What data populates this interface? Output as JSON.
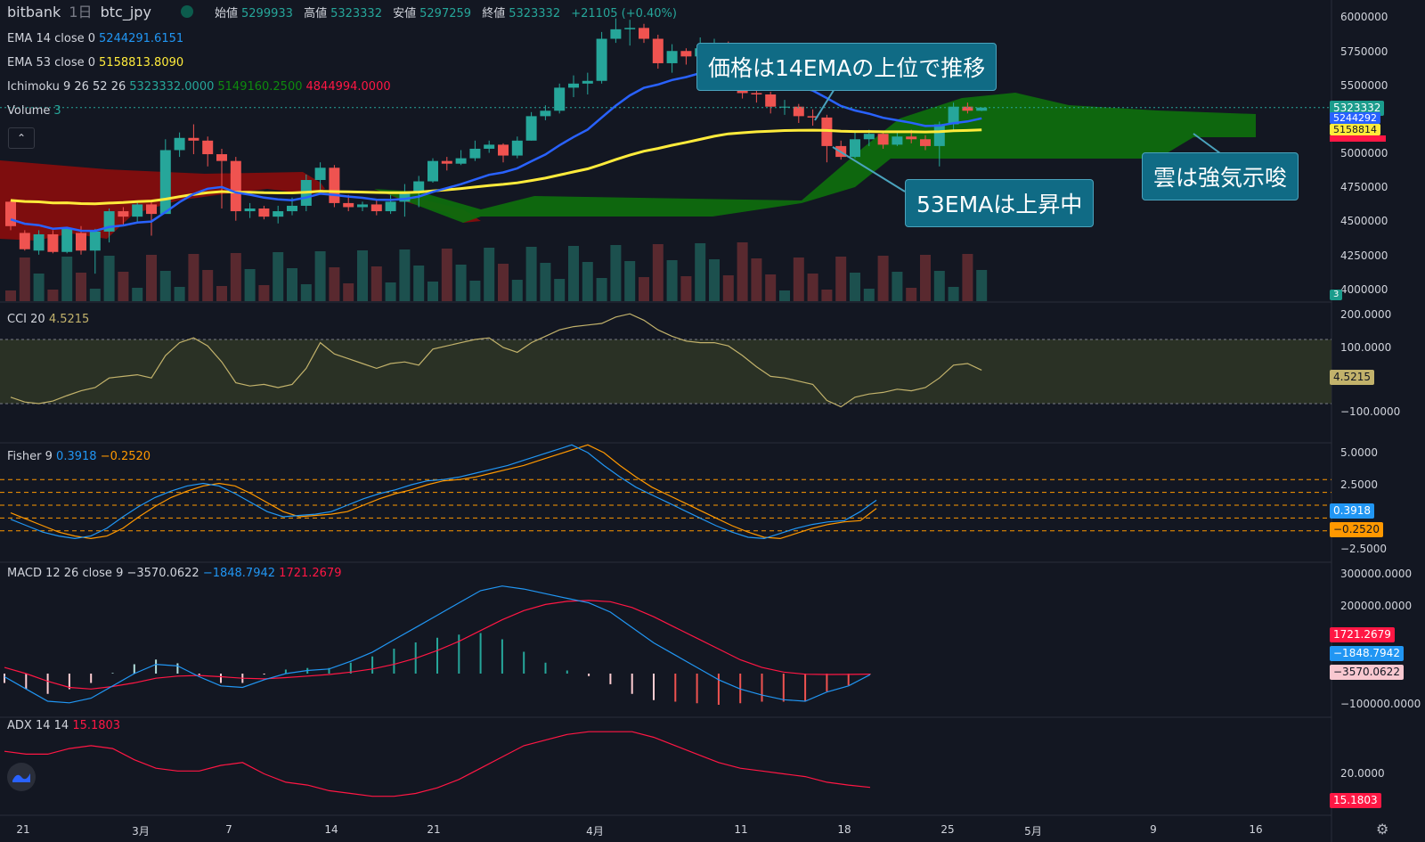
{
  "header": {
    "exchange": "bitbank",
    "interval": "1日",
    "symbol": "btc_jpy",
    "open_label": "始値",
    "open": "5299933",
    "high_label": "高値",
    "high": "5323332",
    "low_label": "安値",
    "low": "5297259",
    "close_label": "終値",
    "close": "5323332",
    "change": "+21105 (+0.40%)"
  },
  "legends": {
    "ema14_name": "EMA 14 close 0",
    "ema14_value": "5244291.6151",
    "ema53_name": "EMA 53 close 0",
    "ema53_value": "5158813.8090",
    "ichimoku_name": "Ichimoku 9 26 52 26",
    "ichimoku_v1": "5323332.0000",
    "ichimoku_v2": "5149160.2500",
    "ichimoku_v3": "4844994.0000",
    "volume_name": "Volume",
    "volume_value": "3",
    "cci_name": "CCI 20",
    "cci_value": "4.5215",
    "fisher_name": "Fisher 9",
    "fisher_v1": "0.3918",
    "fisher_v2": "−0.2520",
    "macd_name": "MACD 12 26 close 9",
    "macd_v1": "−3570.0622",
    "macd_v2": "−1848.7942",
    "macd_v3": "1721.2679",
    "adx_name": "ADX 14 14",
    "adx_value": "15.1803"
  },
  "price_axis": [
    "6000000",
    "5750000",
    "5500000",
    "5000000",
    "4750000",
    "4500000",
    "4250000",
    "4000000"
  ],
  "price_tags": {
    "last": "5323332",
    "ema14": "5244292",
    "ema53": "5158814",
    "volume": "3"
  },
  "cci_axis": [
    "200.0000",
    "100.0000",
    "−100.0000"
  ],
  "cci_tag": "4.5215",
  "fisher_axis": [
    "5.0000",
    "2.5000",
    "−2.5000"
  ],
  "fisher_tags": {
    "v1": "0.3918",
    "v2": "−0.2520"
  },
  "macd_axis": [
    "300000.0000",
    "200000.0000",
    "−100000.0000"
  ],
  "macd_tags": {
    "signal_hist": "1721.2679",
    "v2": "−1848.7942",
    "v1": "−3570.0622"
  },
  "adx_axis": [
    "20.0000"
  ],
  "adx_tag": "15.1803",
  "x_axis": [
    "21",
    "3月",
    "7",
    "14",
    "21",
    "4月",
    "11",
    "18",
    "25",
    "5月",
    "9",
    "16"
  ],
  "callouts": {
    "c1": "価格は14EMAの上位で推移",
    "c2": "53EMAは上昇中",
    "c3": "雲は強気示唆"
  },
  "colors": {
    "background": "#131722",
    "up": "#26a69a",
    "down": "#ef5350",
    "ema14": "#2962ff",
    "ema53": "#ffeb3b",
    "cloud_bull": "#0e6b0e",
    "cloud_bear": "#a50e0e",
    "callout": "#106b85"
  },
  "chart_data": {
    "type": "candlestick",
    "symbol": "btc_jpy",
    "interval": "1日",
    "ylim": [
      3950000,
      6050000
    ],
    "candles": [
      [
        4630000,
        4450000,
        4640000,
        4420000
      ],
      [
        4400000,
        4280000,
        4420000,
        4270000
      ],
      [
        4270000,
        4390000,
        4420000,
        4240000
      ],
      [
        4390000,
        4260000,
        4420000,
        4250000
      ],
      [
        4260000,
        4430000,
        4440000,
        4250000
      ],
      [
        4400000,
        4270000,
        4450000,
        4240000
      ],
      [
        4270000,
        4410000,
        4430000,
        4100000
      ],
      [
        4410000,
        4560000,
        4580000,
        4330000
      ],
      [
        4560000,
        4520000,
        4590000,
        4460000
      ],
      [
        4520000,
        4610000,
        4630000,
        4480000
      ],
      [
        4610000,
        4540000,
        4640000,
        4380000
      ],
      [
        4540000,
        5010000,
        5090000,
        4540000
      ],
      [
        5010000,
        5100000,
        5140000,
        4960000
      ],
      [
        5100000,
        5080000,
        5200000,
        4980000
      ],
      [
        5080000,
        4980000,
        5110000,
        4890000
      ],
      [
        4980000,
        4930000,
        5020000,
        4580000
      ],
      [
        4930000,
        4560000,
        4960000,
        4490000
      ],
      [
        4560000,
        4580000,
        4620000,
        4510000
      ],
      [
        4580000,
        4520000,
        4600000,
        4500000
      ],
      [
        4520000,
        4560000,
        4600000,
        4470000
      ],
      [
        4560000,
        4600000,
        4660000,
        4530000
      ],
      [
        4600000,
        4790000,
        4830000,
        4560000
      ],
      [
        4790000,
        4880000,
        4920000,
        4690000
      ],
      [
        4880000,
        4620000,
        4900000,
        4590000
      ],
      [
        4620000,
        4590000,
        4680000,
        4560000
      ],
      [
        4590000,
        4610000,
        4630000,
        4560000
      ],
      [
        4610000,
        4560000,
        4640000,
        4530000
      ],
      [
        4560000,
        4630000,
        4680000,
        4540000
      ],
      [
        4630000,
        4700000,
        4760000,
        4520000
      ],
      [
        4700000,
        4780000,
        4820000,
        4590000
      ],
      [
        4780000,
        4930000,
        4950000,
        4770000
      ],
      [
        4930000,
        4910000,
        4960000,
        4860000
      ],
      [
        4910000,
        4950000,
        5010000,
        4900000
      ],
      [
        4950000,
        5020000,
        5080000,
        4930000
      ],
      [
        5020000,
        5050000,
        5080000,
        4990000
      ],
      [
        5050000,
        4970000,
        5060000,
        4920000
      ],
      [
        4970000,
        5080000,
        5110000,
        4950000
      ],
      [
        5080000,
        5260000,
        5290000,
        5080000
      ],
      [
        5260000,
        5300000,
        5340000,
        5230000
      ],
      [
        5300000,
        5470000,
        5500000,
        5280000
      ],
      [
        5470000,
        5500000,
        5560000,
        5400000
      ],
      [
        5500000,
        5520000,
        5580000,
        5420000
      ],
      [
        5520000,
        5830000,
        5880000,
        5500000
      ],
      [
        5830000,
        5900000,
        5980000,
        5800000
      ],
      [
        5900000,
        5910000,
        5970000,
        5780000
      ],
      [
        5910000,
        5830000,
        5940000,
        5800000
      ],
      [
        5830000,
        5650000,
        5860000,
        5610000
      ],
      [
        5650000,
        5740000,
        5790000,
        5580000
      ],
      [
        5740000,
        5700000,
        5760000,
        5640000
      ],
      [
        5700000,
        5760000,
        5840000,
        5680000
      ],
      [
        5760000,
        5790000,
        5830000,
        5720000
      ],
      [
        5790000,
        5700000,
        5810000,
        5670000
      ],
      [
        5700000,
        5430000,
        5720000,
        5390000
      ],
      [
        5430000,
        5420000,
        5470000,
        5360000
      ],
      [
        5420000,
        5330000,
        5440000,
        5280000
      ],
      [
        5330000,
        5330000,
        5380000,
        5270000
      ],
      [
        5330000,
        5260000,
        5350000,
        5210000
      ],
      [
        5260000,
        5250000,
        5310000,
        5190000
      ],
      [
        5250000,
        5040000,
        5270000,
        4920000
      ],
      [
        5040000,
        4960000,
        5080000,
        4940000
      ],
      [
        4960000,
        5090000,
        5140000,
        4950000
      ],
      [
        5090000,
        5130000,
        5160000,
        5040000
      ],
      [
        5130000,
        5050000,
        5150000,
        5020000
      ],
      [
        5050000,
        5110000,
        5140000,
        5040000
      ],
      [
        5110000,
        5090000,
        5160000,
        5060000
      ],
      [
        5090000,
        5040000,
        5120000,
        5010000
      ],
      [
        5040000,
        5200000,
        5220000,
        4890000
      ],
      [
        5200000,
        5330000,
        5360000,
        5160000
      ],
      [
        5330000,
        5300000,
        5360000,
        5280000
      ],
      [
        5299933,
        5323332,
        5323332,
        5297259
      ]
    ],
    "ema14": [
      4500000,
      4468000,
      4457000,
      4431000,
      4438000,
      4416000,
      4415000,
      4444000,
      4455000,
      4476000,
      4484000,
      4554000,
      4627000,
      4687000,
      4726000,
      4738000,
      4698000,
      4682000,
      4660000,
      4647000,
      4641000,
      4661000,
      4689000,
      4680000,
      4668000,
      4659000,
      4645000,
      4643000,
      4650000,
      4668000,
      4703000,
      4730000,
      4759000,
      4794000,
      4828000,
      4846000,
      4876000,
      4928000,
      4978000,
      5045000,
      5106000,
      5161000,
      5250000,
      5337000,
      5413000,
      5469000,
      5493000,
      5526000,
      5548000,
      5577000,
      5605000,
      5617000,
      5592000,
      5570000,
      5538000,
      5511000,
      5478000,
      5448000,
      5393000,
      5335000,
      5302000,
      5278000,
      5248000,
      5230000,
      5211000,
      5188000,
      5190000,
      5209000,
      5221000,
      5244292
    ],
    "ema53": [
      4640000,
      4632000,
      4629000,
      4621000,
      4622000,
      4616000,
      4615000,
      4620000,
      4624000,
      4631000,
      4635000,
      4649000,
      4667000,
      4684000,
      4696000,
      4705000,
      4701000,
      4700000,
      4696000,
      4695000,
      4695000,
      4700000,
      4707000,
      4705000,
      4703000,
      4701000,
      4698000,
      4697000,
      4697000,
      4701000,
      4710000,
      4718000,
      4727000,
      4738000,
      4749000,
      4758000,
      4769000,
      4786000,
      4804000,
      4827000,
      4850000,
      4872000,
      4905000,
      4940000,
      4973000,
      5002000,
      5022000,
      5046000,
      5067000,
      5089000,
      5112000,
      5130000,
      5138000,
      5145000,
      5149000,
      5154000,
      5156000,
      5157000,
      5155000,
      5149000,
      5147000,
      5147000,
      5145000,
      5145000,
      5145000,
      5144000,
      5146000,
      5152000,
      5155000,
      5158814
    ],
    "cci": [
      -80,
      -95,
      -100,
      -92,
      -75,
      -60,
      -50,
      -20,
      -15,
      -10,
      -20,
      50,
      90,
      105,
      80,
      30,
      -35,
      -45,
      -40,
      -50,
      -40,
      10,
      90,
      55,
      40,
      25,
      10,
      25,
      30,
      20,
      70,
      80,
      90,
      100,
      105,
      75,
      60,
      90,
      110,
      130,
      140,
      145,
      150,
      170,
      180,
      160,
      130,
      110,
      95,
      90,
      90,
      80,
      50,
      15,
      -15,
      -20,
      -30,
      -40,
      -90,
      -110,
      -80,
      -70,
      -65,
      -55,
      -60,
      -50,
      -20,
      20,
      25,
      4.5215
    ],
    "fisher": [
      -1.1,
      -1.6,
      -2.1,
      -2.4,
      -2.6,
      -2.4,
      -1.8,
      -0.9,
      -0.1,
      0.6,
      1.1,
      1.5,
      1.7,
      1.5,
      0.9,
      0.2,
      -0.5,
      -0.9,
      -0.8,
      -0.7,
      -0.5,
      0,
      0.5,
      0.9,
      1.2,
      1.6,
      1.9,
      2.0,
      2.2,
      2.5,
      2.8,
      3.1,
      3.5,
      3.9,
      4.3,
      4.7,
      4.1,
      3.1,
      2.2,
      1.4,
      0.8,
      0.2,
      -0.4,
      -1.0,
      -1.6,
      -2.1,
      -2.5,
      -2.6,
      -2.2,
      -1.8,
      -1.5,
      -1.3,
      -1.2,
      -0.5,
      0.3918
    ],
    "fisher_signal": [
      -0.6,
      -1.1,
      -1.6,
      -2.1,
      -2.4,
      -2.6,
      -2.4,
      -1.8,
      -0.9,
      -0.1,
      0.6,
      1.1,
      1.5,
      1.7,
      1.5,
      0.9,
      0.2,
      -0.5,
      -0.9,
      -0.8,
      -0.7,
      -0.5,
      0,
      0.5,
      0.9,
      1.2,
      1.6,
      1.9,
      2.0,
      2.2,
      2.5,
      2.8,
      3.1,
      3.5,
      3.9,
      4.3,
      4.7,
      4.1,
      3.1,
      2.2,
      1.4,
      0.8,
      0.2,
      -0.4,
      -1.0,
      -1.6,
      -2.1,
      -2.5,
      -2.6,
      -2.2,
      -1.8,
      -1.5,
      -1.3,
      -1.2,
      -0.252
    ],
    "macd": [
      -10000,
      -50000,
      -90000,
      -95000,
      -80000,
      -40000,
      0,
      30000,
      25000,
      -10000,
      -40000,
      -45000,
      -20000,
      0,
      10000,
      15000,
      40000,
      70000,
      110000,
      150000,
      190000,
      230000,
      270000,
      285000,
      275000,
      260000,
      245000,
      230000,
      200000,
      150000,
      100000,
      60000,
      20000,
      -20000,
      -50000,
      -70000,
      -85000,
      -90000,
      -60000,
      -40000,
      -3570.0622
    ],
    "macd_signal": [
      20000,
      0,
      -25000,
      -45000,
      -50000,
      -42000,
      -30000,
      -15000,
      -8000,
      -6000,
      -10000,
      -15000,
      -17000,
      -13000,
      -8000,
      -3000,
      5000,
      15000,
      30000,
      50000,
      75000,
      105000,
      140000,
      175000,
      205000,
      225000,
      235000,
      238000,
      234000,
      215000,
      185000,
      150000,
      115000,
      80000,
      45000,
      20000,
      5000,
      -2000,
      -3000,
      -2500,
      -1848.7942
    ],
    "adx": [
      28,
      27,
      27,
      29,
      30,
      29,
      25,
      22,
      21,
      21,
      23,
      24,
      20,
      17,
      16,
      14,
      13,
      12,
      12,
      13,
      15,
      18,
      22,
      26,
      30,
      32,
      34,
      35,
      35,
      35,
      33,
      30,
      27,
      24,
      22,
      21,
      20,
      19,
      17,
      16,
      15.1803
    ]
  }
}
